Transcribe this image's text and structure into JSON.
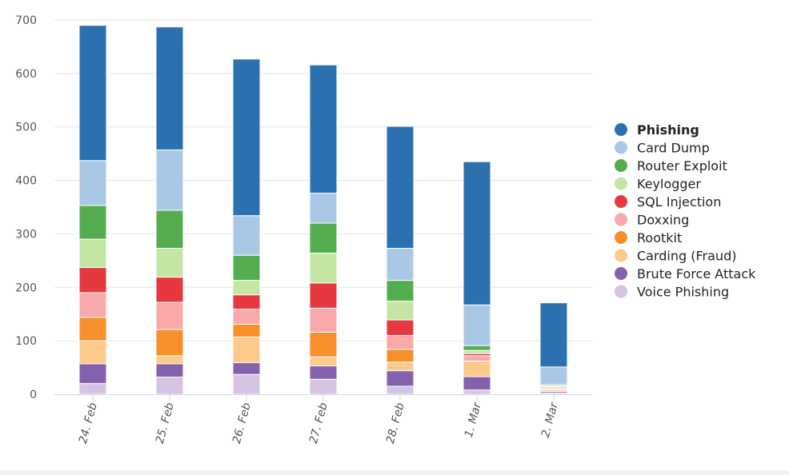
{
  "chart_data": {
    "type": "bar",
    "stacked": true,
    "title": "",
    "xlabel": "",
    "ylabel": "",
    "ylim": [
      0,
      700
    ],
    "yticks": [
      0,
      100,
      200,
      300,
      400,
      500,
      600,
      700
    ],
    "grid": "horizontal",
    "legend_position": "right",
    "categories": [
      "24. Feb",
      "25. Feb",
      "26. Feb",
      "27. Feb",
      "28. Feb",
      "1. Mar",
      "2. Mar"
    ],
    "series": [
      {
        "name": "Voice Phishing",
        "color": "#d4c3e1",
        "values": [
          20,
          32,
          37,
          28,
          15,
          8,
          2
        ]
      },
      {
        "name": "Brute Force Attack",
        "color": "#8560ad",
        "values": [
          37,
          25,
          22,
          25,
          29,
          25,
          3
        ]
      },
      {
        "name": "Carding (Fraud)",
        "color": "#fdca8b",
        "values": [
          43,
          15,
          48,
          17,
          16,
          29,
          3
        ]
      },
      {
        "name": "Rootkit",
        "color": "#f78f2a",
        "values": [
          44,
          49,
          24,
          46,
          24,
          0,
          2
        ]
      },
      {
        "name": "Doxxing",
        "color": "#f9a9a9",
        "values": [
          46,
          51,
          28,
          45,
          26,
          10,
          2
        ]
      },
      {
        "name": "SQL Injection",
        "color": "#e5383f",
        "values": [
          47,
          47,
          27,
          47,
          29,
          4,
          2
        ]
      },
      {
        "name": "Keylogger",
        "color": "#c4e6a4",
        "values": [
          53,
          54,
          27,
          56,
          35,
          6,
          2
        ]
      },
      {
        "name": "Router Exploit",
        "color": "#53ad4e",
        "values": [
          63,
          71,
          47,
          56,
          39,
          9,
          2
        ]
      },
      {
        "name": "Card Dump",
        "color": "#a9c8e6",
        "values": [
          84,
          113,
          74,
          56,
          60,
          76,
          33
        ]
      },
      {
        "name": "Phishing",
        "color": "#2b70af",
        "values": [
          253,
          230,
          293,
          240,
          228,
          268,
          120
        ]
      }
    ],
    "legend_order": [
      "Phishing",
      "Card Dump",
      "Router Exploit",
      "Keylogger",
      "SQL Injection",
      "Doxxing",
      "Rootkit",
      "Carding (Fraud)",
      "Brute Force Attack",
      "Voice Phishing"
    ]
  }
}
